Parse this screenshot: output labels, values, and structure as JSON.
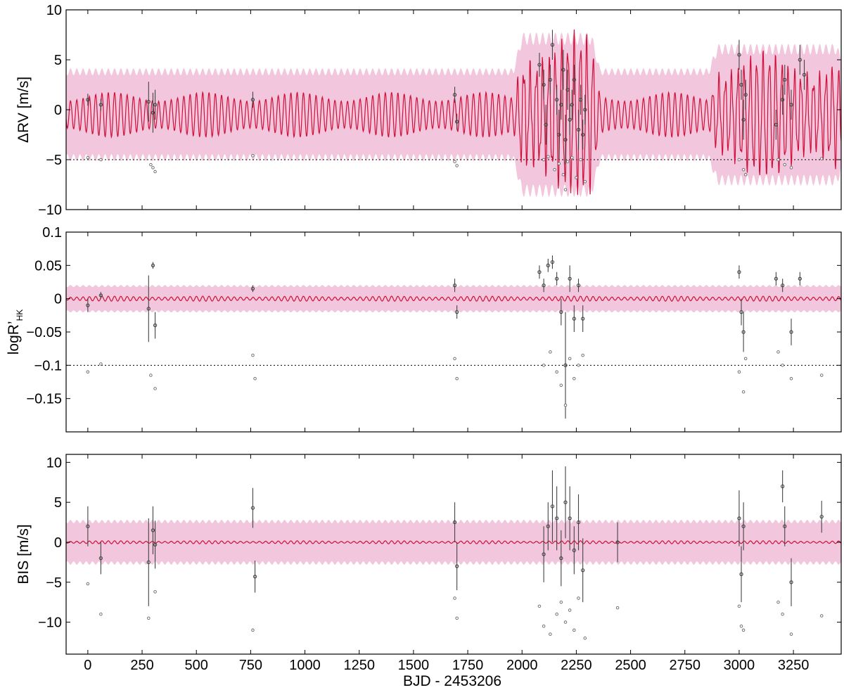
{
  "colors": {
    "model_line": "#d0103a",
    "envelope": "#f2c6dc",
    "points": "#444444",
    "axis": "#000000",
    "reference_line": "#000000"
  },
  "chart_data": [
    {
      "type": "line",
      "panel": "top",
      "ylabel": "ΔRV [m/s]",
      "ylim": [
        -10,
        10
      ],
      "yticks": [
        -10,
        -5,
        0,
        5,
        10
      ],
      "ytick_labels": [
        "−10",
        "−5",
        "0",
        "5",
        "10"
      ],
      "xlim": [
        -100,
        3470
      ],
      "reference_line": -5,
      "model": {
        "period": 29,
        "amplitude": 1.8,
        "center": -0.5,
        "envelope_halfwidth": 4.3,
        "active_windows": [
          [
            2000,
            2320,
            3.2
          ],
          [
            2900,
            3450,
            2.5
          ]
        ]
      },
      "series": [
        {
          "kind": "measurement",
          "x": [
            0,
            60,
            280,
            300,
            310,
            760,
            1690,
            1700,
            2080,
            2100,
            2110,
            2130,
            2140,
            2160,
            2170,
            2180,
            2190,
            2200,
            2210,
            2220,
            2230,
            2240,
            2260,
            2270,
            2280,
            2290,
            3000,
            3010,
            3020,
            3030,
            3170,
            3200,
            3210,
            3240,
            3280,
            3300
          ],
          "y": [
            1.0,
            0.5,
            0.8,
            -0.3,
            0.5,
            1.0,
            1.5,
            -1.2,
            4.5,
            2.5,
            -1.5,
            3.0,
            6.5,
            1.0,
            -2.5,
            0.5,
            4.0,
            -3.0,
            2.0,
            -1.0,
            0.5,
            3.0,
            -2.0,
            1.0,
            -2.5,
            0.0,
            5.5,
            2.5,
            -1.0,
            1.5,
            -1.5,
            1.0,
            3.0,
            0.5,
            5.0,
            3.5
          ],
          "err": [
            0.6,
            0.6,
            2.0,
            2.0,
            1.5,
            0.8,
            0.8,
            0.8,
            1.2,
            1.5,
            2.0,
            1.5,
            1.5,
            1.5,
            2.5,
            1.5,
            2.0,
            2.5,
            2.0,
            1.5,
            1.5,
            1.5,
            2.0,
            1.5,
            1.5,
            1.5,
            1.5,
            1.5,
            2.0,
            1.5,
            1.5,
            1.5,
            1.5,
            1.5,
            1.5,
            1.5
          ]
        },
        {
          "kind": "residual",
          "x": [
            0,
            60,
            290,
            300,
            310,
            760,
            1690,
            1700,
            2100,
            2120,
            2150,
            2170,
            2190,
            2200,
            2210,
            2230,
            2250,
            2270,
            2290,
            3000,
            3020,
            3030,
            3180,
            3210,
            3240,
            3380
          ],
          "y": [
            -4.8,
            -5.0,
            -5.5,
            -5.8,
            -6.2,
            -4.6,
            -5.2,
            -5.6,
            -5.0,
            -4.7,
            -6.0,
            -5.4,
            -6.5,
            -8.0,
            -5.2,
            -4.8,
            -6.8,
            -5.0,
            -7.2,
            -5.0,
            -6.0,
            -6.5,
            -5.0,
            -5.5,
            -5.8,
            -4.9
          ]
        }
      ]
    },
    {
      "type": "line",
      "panel": "middle",
      "ylabel": "logR’",
      "ylabel_sub": "HK",
      "ylim": [
        -0.2,
        0.1
      ],
      "yticks": [
        -0.15,
        -0.1,
        -0.05,
        0,
        0.05,
        0.1
      ],
      "ytick_labels": [
        "−0.15",
        "−0.1",
        "−0.05",
        "0",
        "0.05",
        "0.1"
      ],
      "xlim": [
        -100,
        3470
      ],
      "reference_line": -0.1,
      "model": {
        "period": 29,
        "amplitude": 0.003,
        "center": 0.0,
        "envelope_halfwidth": 0.019,
        "active_windows": [
          [
            300,
            350,
            0.004
          ],
          [
            680,
            860,
            0.004
          ],
          [
            1600,
            1760,
            0.004
          ],
          [
            2000,
            2320,
            0.014
          ],
          [
            2900,
            3460,
            0.009
          ]
        ]
      },
      "series": [
        {
          "kind": "measurement",
          "x": [
            0,
            60,
            280,
            300,
            310,
            760,
            1690,
            1700,
            2080,
            2100,
            2120,
            2140,
            2160,
            2180,
            2200,
            2220,
            2240,
            2260,
            2280,
            3000,
            3010,
            3020,
            3170,
            3200,
            3240,
            3280
          ],
          "y": [
            -0.01,
            0.005,
            -0.015,
            0.05,
            -0.04,
            0.015,
            0.02,
            -0.02,
            0.04,
            0.02,
            0.05,
            0.055,
            0.03,
            -0.02,
            -0.1,
            0.03,
            -0.03,
            0.02,
            -0.03,
            0.04,
            -0.02,
            -0.05,
            0.03,
            0.02,
            -0.05,
            0.03
          ],
          "err": [
            0.01,
            0.005,
            0.05,
            0.005,
            0.02,
            0.005,
            0.01,
            0.01,
            0.01,
            0.01,
            0.01,
            0.01,
            0.01,
            0.02,
            0.08,
            0.02,
            0.02,
            0.01,
            0.02,
            0.01,
            0.02,
            0.03,
            0.01,
            0.01,
            0.02,
            0.01
          ]
        },
        {
          "kind": "residual",
          "x": [
            0,
            60,
            290,
            310,
            760,
            770,
            1690,
            1700,
            2100,
            2130,
            2160,
            2180,
            2200,
            2220,
            2240,
            2260,
            2280,
            3000,
            3020,
            3030,
            3180,
            3200,
            3240,
            3380
          ],
          "y": [
            -0.11,
            -0.098,
            -0.115,
            -0.135,
            -0.085,
            -0.12,
            -0.09,
            -0.12,
            -0.1,
            -0.08,
            -0.11,
            -0.13,
            -0.16,
            -0.09,
            -0.12,
            -0.1,
            -0.085,
            -0.11,
            -0.14,
            -0.09,
            -0.08,
            -0.1,
            -0.12,
            -0.115
          ]
        }
      ]
    },
    {
      "type": "line",
      "panel": "bottom",
      "ylabel": "BIS [m/s]",
      "xlabel": "BJD - 2453206",
      "ylim": [
        -14,
        11
      ],
      "yticks": [
        -10,
        -5,
        0,
        5,
        10
      ],
      "ytick_labels": [
        "−10",
        "−5",
        "0",
        "5",
        "10"
      ],
      "xlim": [
        -100,
        3470
      ],
      "xticks": [
        0,
        250,
        500,
        750,
        1000,
        1250,
        1500,
        1750,
        2000,
        2250,
        2500,
        2750,
        3000,
        3250
      ],
      "xtick_labels": [
        "0",
        "250",
        "500",
        "750",
        "1000",
        "1250",
        "1500",
        "1750",
        "2000",
        "2250",
        "2500",
        "2750",
        "3000",
        "3250"
      ],
      "model": {
        "period": 29,
        "amplitude": 0.15,
        "center": 0.0,
        "envelope_halfwidth": 2.6,
        "active_windows": [
          [
            260,
            340,
            0.4
          ],
          [
            660,
            820,
            0.4
          ],
          [
            1600,
            1760,
            0.4
          ],
          [
            2000,
            2320,
            0.9
          ],
          [
            2900,
            3450,
            0.8
          ]
        ]
      },
      "series": [
        {
          "kind": "measurement",
          "x": [
            0,
            60,
            280,
            300,
            310,
            760,
            770,
            1690,
            1700,
            2100,
            2120,
            2140,
            2160,
            2180,
            2200,
            2220,
            2240,
            2260,
            2280,
            2440,
            3000,
            3010,
            3020,
            3200,
            3210,
            3240,
            3380
          ],
          "y": [
            2.0,
            -2.0,
            -2.5,
            1.5,
            -0.3,
            4.3,
            -4.3,
            2.5,
            -3.0,
            -1.5,
            2.0,
            4.5,
            3.0,
            -2.0,
            5.0,
            3.0,
            -1.0,
            2.5,
            -3.5,
            0.0,
            3.0,
            -4.0,
            2.0,
            7.0,
            2.0,
            -5.0,
            3.2
          ],
          "err": [
            2.5,
            2.0,
            5.5,
            3.0,
            3.0,
            2.5,
            2.0,
            2.5,
            3.0,
            3.5,
            3.0,
            4.5,
            4.0,
            3.5,
            4.5,
            4.0,
            3.0,
            3.5,
            4.0,
            2.5,
            3.5,
            3.5,
            3.0,
            2.0,
            2.5,
            3.0,
            2.0
          ]
        },
        {
          "kind": "residual",
          "x": [
            0,
            60,
            280,
            310,
            760,
            1690,
            1700,
            2080,
            2100,
            2130,
            2160,
            2180,
            2200,
            2220,
            2240,
            2260,
            2290,
            2440,
            3000,
            3010,
            3020,
            3180,
            3200,
            3240,
            3380
          ],
          "y": [
            -5.2,
            -9.0,
            -9.5,
            -6.2,
            -11.0,
            -7.0,
            -9.5,
            -8.0,
            -10.5,
            -11.5,
            -9.0,
            -7.5,
            -10.0,
            -8.5,
            -11.0,
            -7.0,
            -12.0,
            -8.2,
            -8.0,
            -10.5,
            -11.0,
            -7.5,
            -9.0,
            -11.5,
            -9.2
          ]
        }
      ]
    }
  ]
}
